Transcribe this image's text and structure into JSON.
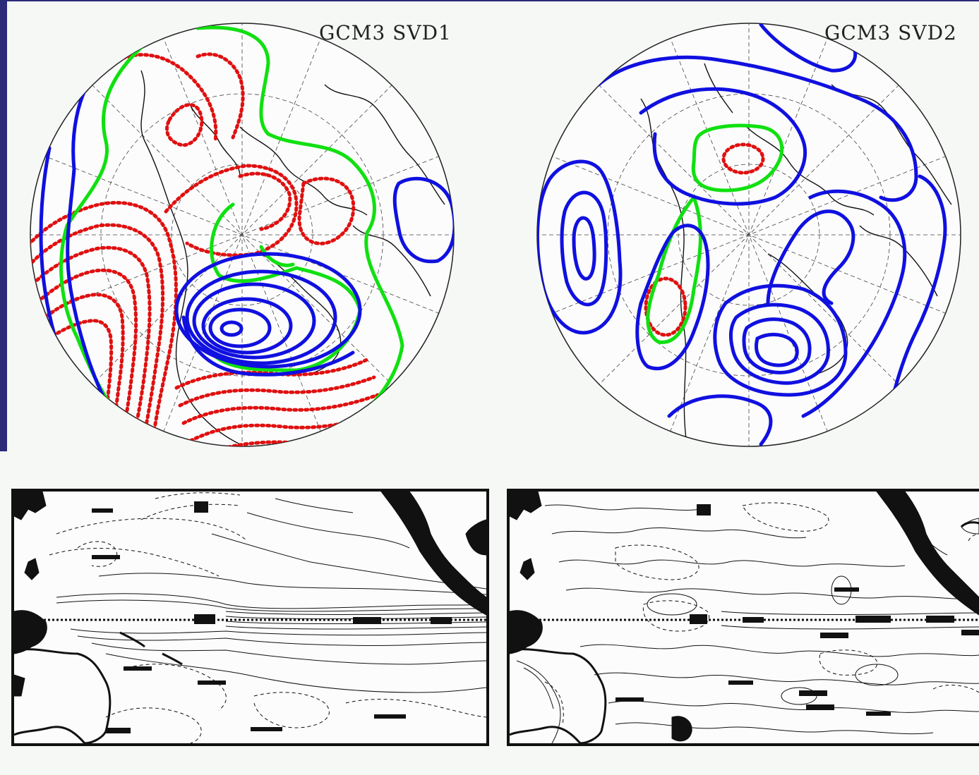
{
  "colors": {
    "background": "#f5f8f5",
    "positive_contour": "#1010e0",
    "negative_contour": "#e01010",
    "zero_contour": "#10e010",
    "frame": "#111111"
  },
  "panels": [
    {
      "title": "GCM3  SVD1"
    },
    {
      "title": "GCM3  SVD2"
    }
  ]
}
